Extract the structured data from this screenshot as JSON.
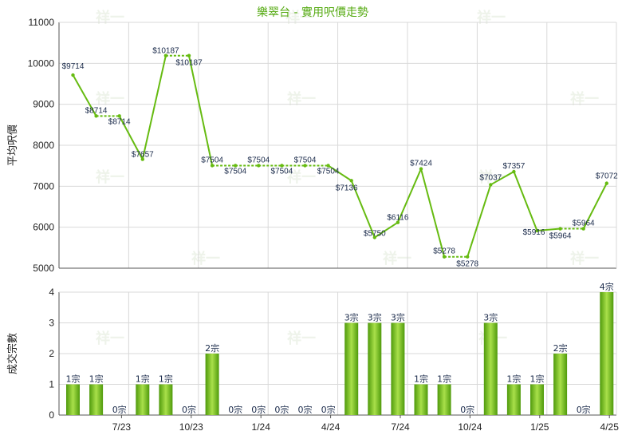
{
  "title": "樂翠台 - 實用呎價走勢",
  "watermark": "祥一",
  "colors": {
    "line": "#66bb11",
    "bar_dark": "#4f9a0c",
    "bar_light": "#a9e04a",
    "grid": "#d9d9d9"
  },
  "chart_data": [
    {
      "type": "line",
      "title": "樂翠台 - 實用呎價走勢",
      "ylabel": "平均呎價",
      "ylim": [
        5000,
        11000
      ],
      "yticks": [
        "5000",
        "6000",
        "7000",
        "8000",
        "9000",
        "10000",
        "11000"
      ],
      "grid": true,
      "x": [
        0,
        1,
        2,
        3,
        4,
        5,
        6,
        7,
        8,
        9,
        10,
        11,
        12,
        13,
        14,
        15,
        16,
        17,
        18,
        19,
        20,
        21,
        22,
        23
      ],
      "values": [
        9714,
        8714,
        8714,
        7657,
        10187,
        10187,
        7504,
        7504,
        7504,
        7504,
        7504,
        7504,
        7136,
        5750,
        6116,
        7424,
        5278,
        5278,
        7037,
        7357,
        5916,
        5964,
        5964,
        7072
      ],
      "labels": [
        "$9714",
        "$8714",
        "$8714",
        "$7657",
        "$10187",
        "$10187",
        "$7504",
        "$7504",
        "$7504",
        "$7504",
        "$7504",
        "$7504",
        "$7136",
        "$5750",
        "$6116",
        "$7424",
        "$5278",
        "$5278",
        "$7037",
        "$7357",
        "$5916",
        "$5964",
        "$5964",
        "$7072"
      ],
      "no_transaction": [
        false,
        false,
        true,
        false,
        false,
        true,
        false,
        true,
        true,
        true,
        true,
        true,
        false,
        false,
        false,
        false,
        false,
        true,
        false,
        false,
        false,
        false,
        true,
        false
      ]
    },
    {
      "type": "bar",
      "ylabel": "成交宗數",
      "ylim": [
        0,
        4
      ],
      "yticks": [
        "0",
        "1",
        "2",
        "3",
        "4"
      ],
      "grid": true,
      "values": [
        1,
        1,
        0,
        1,
        1,
        0,
        2,
        0,
        0,
        0,
        0,
        0,
        3,
        3,
        3,
        1,
        1,
        0,
        3,
        1,
        1,
        2,
        0,
        4
      ],
      "labels": [
        "1宗",
        "1宗",
        "0宗",
        "1宗",
        "1宗",
        "0宗",
        "2宗",
        "0宗",
        "0宗",
        "0宗",
        "0宗",
        "0宗",
        "3宗",
        "3宗",
        "3宗",
        "1宗",
        "1宗",
        "0宗",
        "3宗",
        "1宗",
        "1宗",
        "2宗",
        "0宗",
        "4宗"
      ],
      "xtick_labels": [
        "7/23",
        "10/23",
        "1/24",
        "4/24",
        "7/24",
        "10/24",
        "1/25",
        "4/25"
      ]
    }
  ]
}
